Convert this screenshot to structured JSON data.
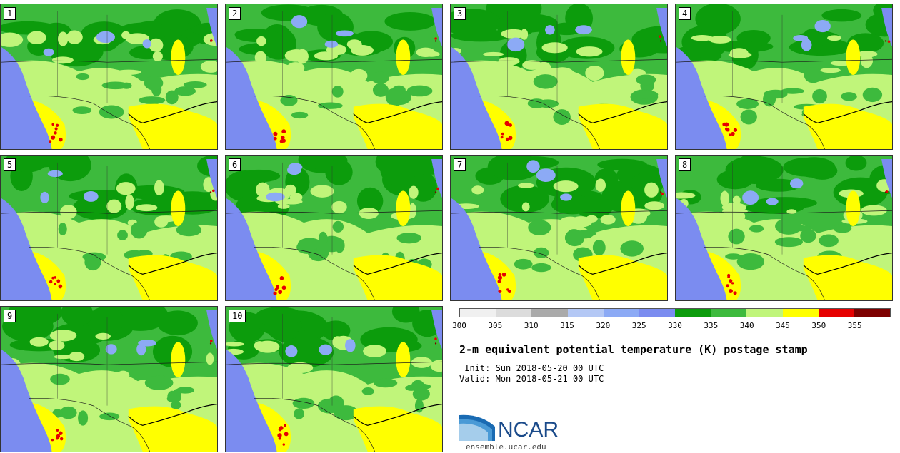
{
  "panels": [
    {
      "label": "1"
    },
    {
      "label": "2"
    },
    {
      "label": "3"
    },
    {
      "label": "4"
    },
    {
      "label": "5"
    },
    {
      "label": "6"
    },
    {
      "label": "7"
    },
    {
      "label": "8"
    },
    {
      "label": "9"
    },
    {
      "label": "10"
    }
  ],
  "colorbar": {
    "colors": [
      "#f0f0f0",
      "#dcdcdc",
      "#aaaaaa",
      "#b4c8f5",
      "#8caaf5",
      "#7b8cf0",
      "#0c9c0c",
      "#3dba3d",
      "#c0f57a",
      "#ffff00",
      "#e60000",
      "#7d0000"
    ],
    "ticks": [
      "300",
      "305",
      "310",
      "315",
      "320",
      "325",
      "330",
      "335",
      "340",
      "345",
      "350",
      "355"
    ]
  },
  "title": "2-m equivalent potential temperature (K) postage stamp",
  "init": " Init: Sun 2018-05-20 00 UTC",
  "valid": "Valid: Mon 2018-05-21 00 UTC",
  "logo": {
    "text": "NCAR",
    "site": "ensemble.ucar.edu",
    "color": "#1a4a8a"
  }
}
